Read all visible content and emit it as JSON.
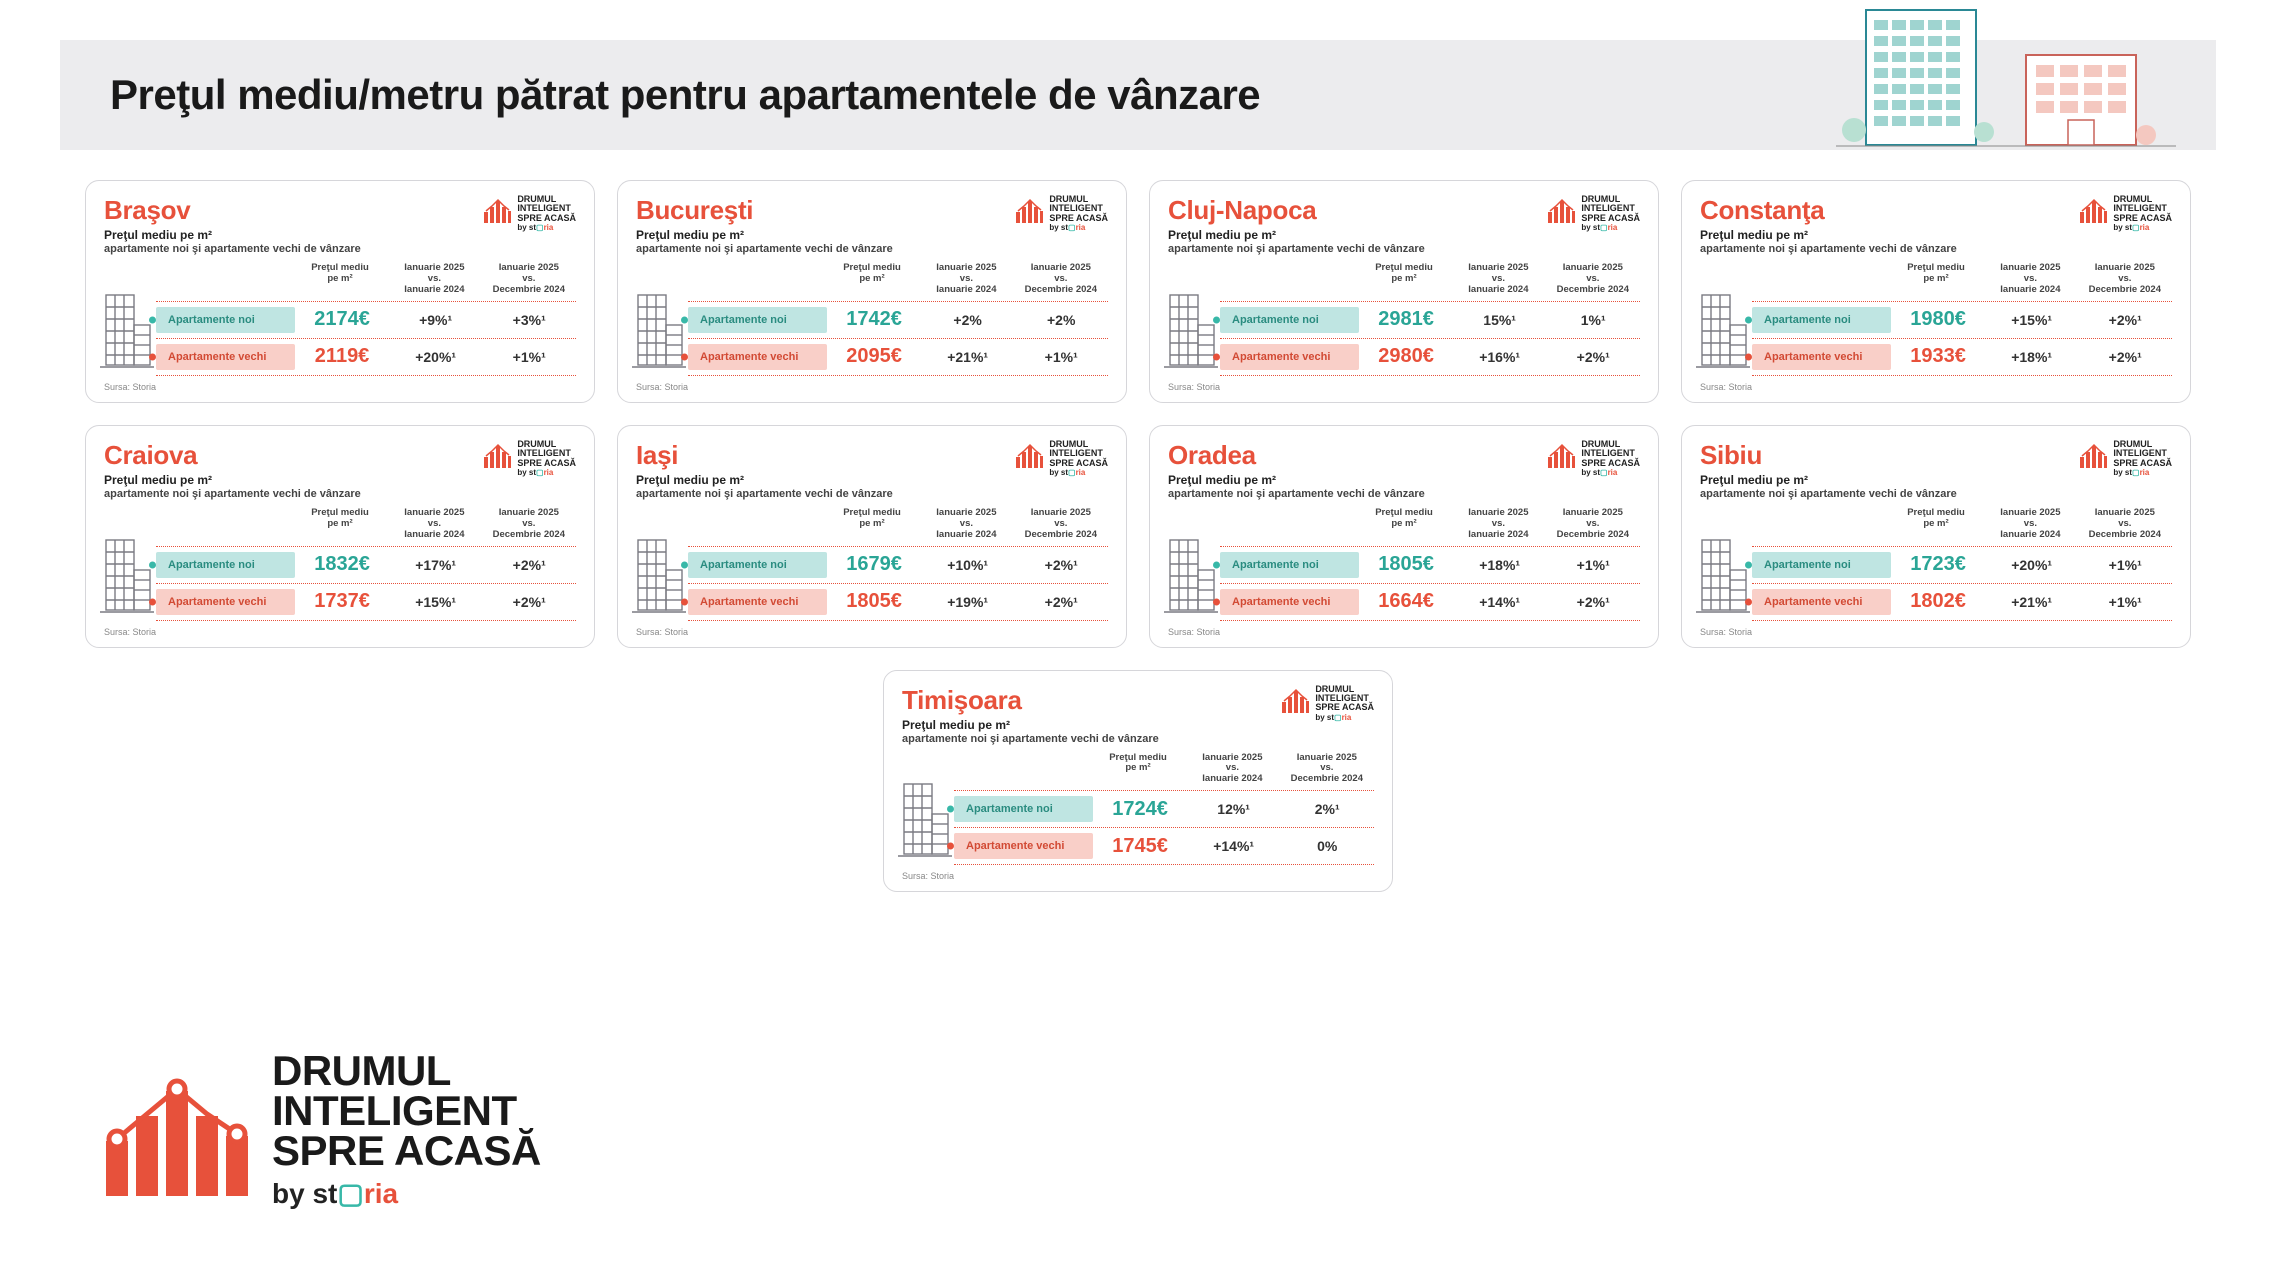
{
  "colors": {
    "accent_red": "#e7513b",
    "accent_teal": "#38b8a8",
    "row_new_bg": "#bfe5e2",
    "row_old_bg": "#f9cfc8",
    "header_bg": "#ececee",
    "card_border": "#d6d6da",
    "text_dark": "#1a1a1a",
    "text_muted": "#888"
  },
  "page": {
    "title": "Preţul mediu/metru pătrat pentru apartamentele de vânzare"
  },
  "card_labels": {
    "subtitle1": "Preţul mediu pe m²",
    "subtitle2": "apartamente noi şi apartamente vechi de vânzare",
    "col_price": "Preţul mediu\npe m²",
    "col_yoy": "Ianuarie 2025\nvs.\nIanuarie 2024",
    "col_mom": "Ianuarie 2025\nvs.\nDecembrie 2024",
    "row_new": "Apartamente noi",
    "row_old": "Apartamente vechi",
    "source": "Sursa: Storia",
    "brand_line1": "DRUMUL",
    "brand_line2": "INTELIGENT",
    "brand_line3": "SPRE ACASĂ",
    "brand_by": "by",
    "brand_name": "storia"
  },
  "cities": [
    {
      "name": "Braşov",
      "new": {
        "price": "2174€",
        "yoy": "+9%¹",
        "mom": "+3%¹"
      },
      "old": {
        "price": "2119€",
        "yoy": "+20%¹",
        "mom": "+1%¹"
      }
    },
    {
      "name": "Bucureşti",
      "new": {
        "price": "1742€",
        "yoy": "+2%",
        "mom": "+2%"
      },
      "old": {
        "price": "2095€",
        "yoy": "+21%¹",
        "mom": "+1%¹"
      }
    },
    {
      "name": "Cluj-Napoca",
      "new": {
        "price": "2981€",
        "yoy": "15%¹",
        "mom": "1%¹"
      },
      "old": {
        "price": "2980€",
        "yoy": "+16%¹",
        "mom": "+2%¹"
      }
    },
    {
      "name": "Constanţa",
      "new": {
        "price": "1980€",
        "yoy": "+15%¹",
        "mom": "+2%¹"
      },
      "old": {
        "price": "1933€",
        "yoy": "+18%¹",
        "mom": "+2%¹"
      }
    },
    {
      "name": "Craiova",
      "new": {
        "price": "1832€",
        "yoy": "+17%¹",
        "mom": "+2%¹"
      },
      "old": {
        "price": "1737€",
        "yoy": "+15%¹",
        "mom": "+2%¹"
      }
    },
    {
      "name": "Iaşi",
      "new": {
        "price": "1679€",
        "yoy": "+10%¹",
        "mom": "+2%¹"
      },
      "old": {
        "price": "1805€",
        "yoy": "+19%¹",
        "mom": "+2%¹"
      }
    },
    {
      "name": "Oradea",
      "new": {
        "price": "1805€",
        "yoy": "+18%¹",
        "mom": "+1%¹"
      },
      "old": {
        "price": "1664€",
        "yoy": "+14%¹",
        "mom": "+2%¹"
      }
    },
    {
      "name": "Sibiu",
      "new": {
        "price": "1723€",
        "yoy": "+20%¹",
        "mom": "+1%¹"
      },
      "old": {
        "price": "1802€",
        "yoy": "+21%¹",
        "mom": "+1%¹"
      }
    },
    {
      "name": "Timişoara",
      "new": {
        "price": "1724€",
        "yoy": "12%¹",
        "mom": "2%¹"
      },
      "old": {
        "price": "1745€",
        "yoy": "+14%¹",
        "mom": "0%"
      }
    }
  ],
  "brand": {
    "line1": "DRUMUL",
    "line2": "INTELIGENT",
    "line3": "SPRE ACASĂ",
    "by": "by",
    "name": "storia"
  }
}
